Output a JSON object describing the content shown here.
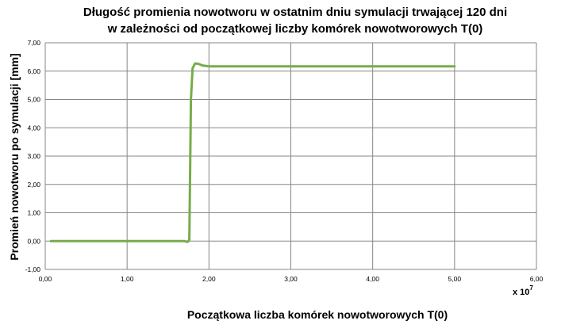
{
  "chart_data": {
    "type": "line",
    "title_lines": [
      "Długość promienia nowotworu w ostatnim dniu symulacji trwającej 120 dni",
      "w zależności od początkowej liczby komórek nowotworowych T(0)"
    ],
    "xlabel": "Początkowa liczba komórek nowotworowych T(0)",
    "ylabel": "Promień nowotworu po symulacji [mm]",
    "x_multiplier": {
      "base": "x 10",
      "exponent": "7"
    },
    "xlim": [
      0,
      6
    ],
    "ylim": [
      -1,
      7
    ],
    "x_ticks": [
      0,
      1,
      2,
      3,
      4,
      5,
      6
    ],
    "x_tick_labels": [
      "0,00",
      "1,00",
      "2,00",
      "3,00",
      "4,00",
      "5,00",
      "6,00"
    ],
    "y_ticks": [
      -1,
      0,
      1,
      2,
      3,
      4,
      5,
      6,
      7
    ],
    "y_tick_labels": [
      "-1,00",
      "0,00",
      "1,00",
      "2,00",
      "3,00",
      "4,00",
      "5,00",
      "6,00",
      "7,00"
    ],
    "grid": true,
    "legend": "none",
    "series": [
      {
        "color": "#77ac4a",
        "x": [
          0.07,
          1.0,
          1.7,
          1.74,
          1.76,
          1.77,
          1.78,
          1.8,
          1.83,
          1.87,
          1.92,
          2.0,
          3.0,
          4.0,
          5.0
        ],
        "y": [
          0.0,
          0.0,
          0.0,
          -0.03,
          0.05,
          2.5,
          5.0,
          6.1,
          6.27,
          6.26,
          6.2,
          6.17,
          6.17,
          6.17,
          6.17
        ]
      }
    ]
  }
}
